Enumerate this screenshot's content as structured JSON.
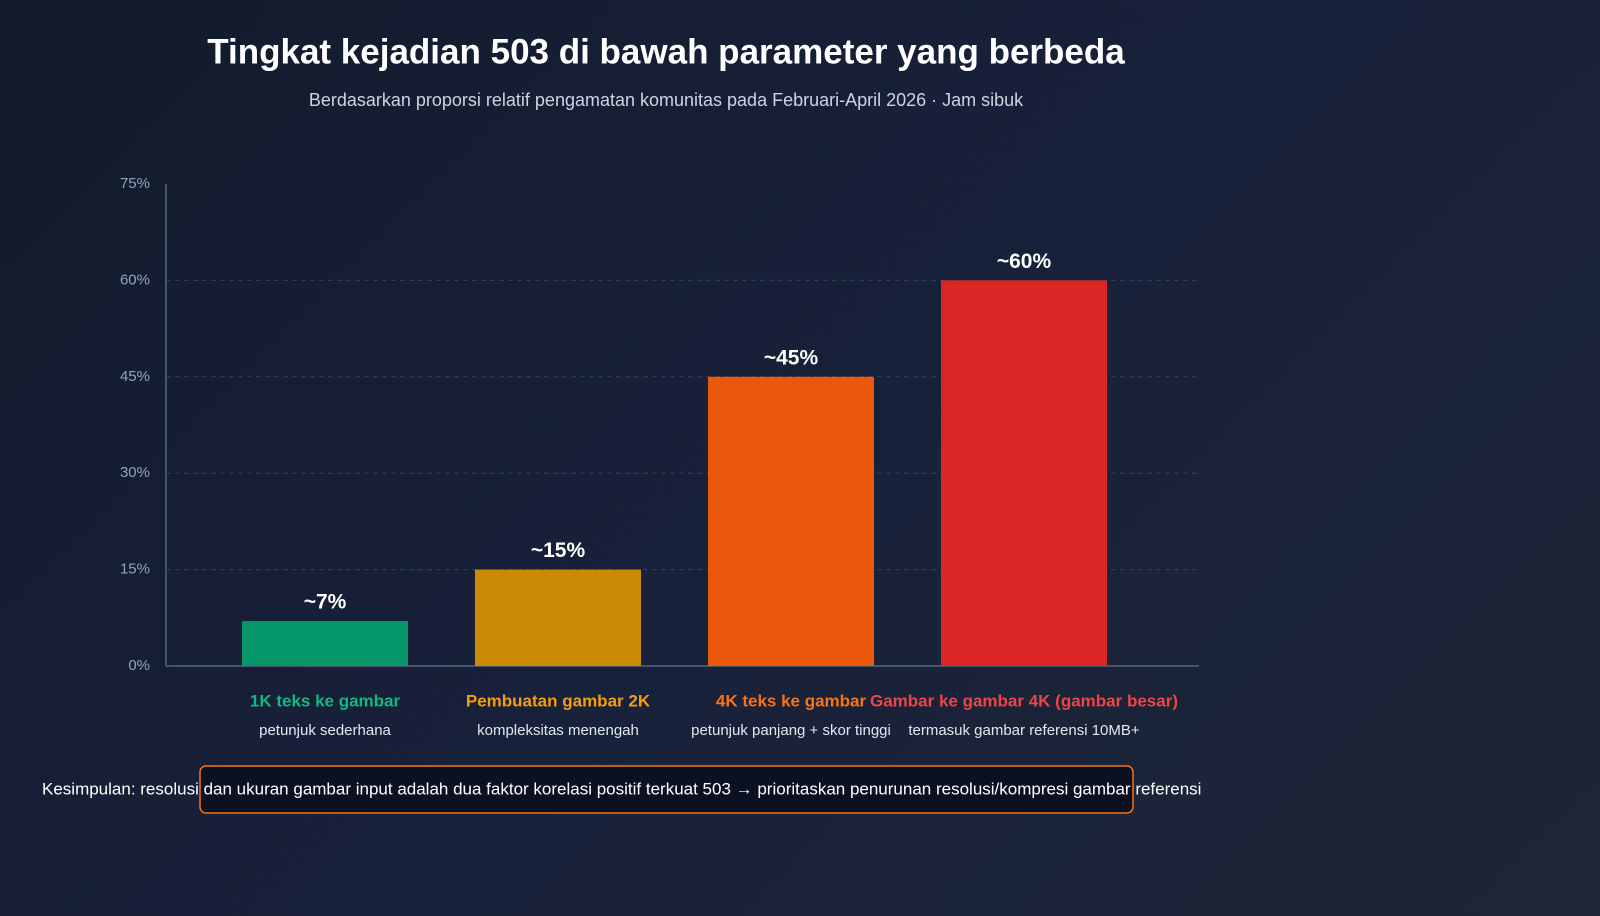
{
  "chart_data": {
    "type": "bar",
    "title": "Tingkat kejadian 503 di bawah parameter yang berbeda",
    "subtitle": "Berdasarkan proporsi relatif pengamatan komunitas pada Februari-April 2026 · Jam sibuk",
    "categories": [
      "1K teks ke gambar",
      "Pembuatan gambar 2K",
      "4K teks ke gambar",
      "Gambar ke gambar 4K (gambar besar)"
    ],
    "category_notes": [
      "petunjuk sederhana",
      "kompleksitas menengah",
      "petunjuk panjang + skor tinggi",
      "termasuk gambar referensi 10MB+"
    ],
    "values": [
      7,
      15,
      45,
      60
    ],
    "value_labels": [
      "~7%",
      "~15%",
      "~45%",
      "~60%"
    ],
    "colors": [
      "#059669",
      "#ca8a04",
      "#ea580c",
      "#dc2626"
    ],
    "label_colors": [
      "#10b981",
      "#f59e0b",
      "#f97316",
      "#ef4444"
    ],
    "ylim": [
      0,
      75
    ],
    "yticks": [
      {
        "value": 0,
        "label": "0%"
      },
      {
        "value": 15,
        "label": "15%"
      },
      {
        "value": 30,
        "label": "30%"
      },
      {
        "value": 45,
        "label": "45%"
      },
      {
        "value": 60,
        "label": "60%"
      },
      {
        "value": 75,
        "label": "75%"
      }
    ],
    "grid": true,
    "conclusion": "Kesimpulan: resolusi dan ukuran gambar input adalah dua faktor korelasi positif terkuat 503 → prioritaskan penurunan resolusi/kompresi gambar referensi"
  }
}
